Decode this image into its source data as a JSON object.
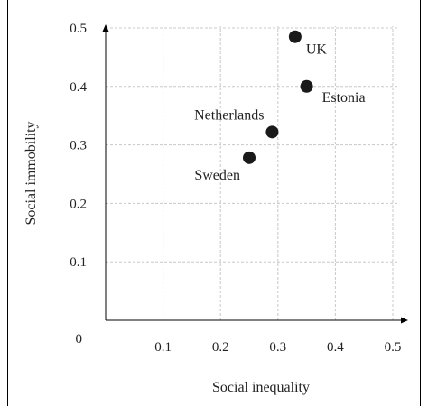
{
  "chart_data": {
    "type": "scatter",
    "xlabel": "Social inequality",
    "ylabel": "Social immobility",
    "xlim": [
      0,
      0.5
    ],
    "ylim": [
      0,
      0.5
    ],
    "x_ticks": [
      "0.1",
      "0.2",
      "0.3",
      "0.4",
      "0.5"
    ],
    "y_ticks": [
      "0.1",
      "0.2",
      "0.3",
      "0.4",
      "0.5"
    ],
    "origin_label": "0",
    "grid": true,
    "grid_style": "dashed",
    "marker_color": "#1a1a1a",
    "points": [
      {
        "label": "UK",
        "x": 0.33,
        "y": 0.485
      },
      {
        "label": "Estonia",
        "x": 0.35,
        "y": 0.4
      },
      {
        "label": "Netherlands",
        "x": 0.29,
        "y": 0.322
      },
      {
        "label": "Sweden",
        "x": 0.25,
        "y": 0.278
      }
    ]
  }
}
